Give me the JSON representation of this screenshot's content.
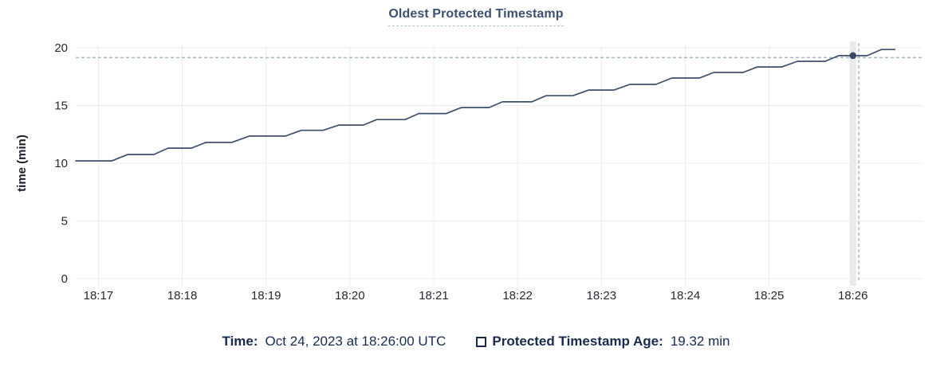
{
  "title": "Oldest Protected Timestamp",
  "legend": {
    "time_label": "Time:",
    "time_value": "Oct 24, 2023 at 18:26:00 UTC",
    "series_label": "Protected Timestamp Age:",
    "series_value": "19.32 min"
  },
  "colors": {
    "title_text": "#3d506e",
    "title_underline": "#b4c1d3",
    "legend_text": "#182a4e",
    "line": "#3e4f6b",
    "dot": "#394a66",
    "crosshair": "#9fb2c2",
    "grid": "#ececec",
    "hover_band": "#e9e9e9",
    "tick_text": "#24292f",
    "axis_title_text": "#1b1f27"
  },
  "chart_data": {
    "type": "line",
    "title": "Oldest Protected Timestamp",
    "xlabel": "",
    "ylabel": "time (min)",
    "ylim": [
      0,
      20
    ],
    "yticks": [
      0,
      5,
      10,
      15,
      20
    ],
    "x_domain": [
      -0.27,
      9.83
    ],
    "xticks": [
      {
        "t": 0,
        "label": "18:17"
      },
      {
        "t": 1,
        "label": "18:18"
      },
      {
        "t": 2,
        "label": "18:19"
      },
      {
        "t": 3,
        "label": "18:20"
      },
      {
        "t": 4,
        "label": "18:21"
      },
      {
        "t": 5,
        "label": "18:22"
      },
      {
        "t": 6,
        "label": "18:23"
      },
      {
        "t": 7,
        "label": "18:24"
      },
      {
        "t": 8,
        "label": "18:25"
      },
      {
        "t": 9,
        "label": "18:26"
      }
    ],
    "grid": true,
    "legend_position": "bottom",
    "series": [
      {
        "name": "Protected Timestamp Age",
        "unit": "min",
        "points": [
          [
            -0.27,
            10.2
          ],
          [
            0.16,
            10.2
          ],
          [
            0.35,
            10.75
          ],
          [
            0.66,
            10.75
          ],
          [
            0.83,
            11.3
          ],
          [
            1.11,
            11.3
          ],
          [
            1.28,
            11.8
          ],
          [
            1.59,
            11.8
          ],
          [
            1.8,
            12.35
          ],
          [
            2.23,
            12.35
          ],
          [
            2.42,
            12.85
          ],
          [
            2.68,
            12.85
          ],
          [
            2.87,
            13.3
          ],
          [
            3.16,
            13.3
          ],
          [
            3.32,
            13.78
          ],
          [
            3.66,
            13.78
          ],
          [
            3.82,
            14.3
          ],
          [
            4.15,
            14.3
          ],
          [
            4.33,
            14.82
          ],
          [
            4.66,
            14.82
          ],
          [
            4.82,
            15.32
          ],
          [
            5.17,
            15.32
          ],
          [
            5.34,
            15.85
          ],
          [
            5.66,
            15.85
          ],
          [
            5.85,
            16.34
          ],
          [
            6.15,
            16.34
          ],
          [
            6.34,
            16.83
          ],
          [
            6.65,
            16.83
          ],
          [
            6.84,
            17.38
          ],
          [
            7.17,
            17.38
          ],
          [
            7.34,
            17.86
          ],
          [
            7.69,
            17.86
          ],
          [
            7.86,
            18.34
          ],
          [
            8.15,
            18.34
          ],
          [
            8.34,
            18.83
          ],
          [
            8.67,
            18.83
          ],
          [
            8.83,
            19.32
          ],
          [
            9.17,
            19.32
          ],
          [
            9.34,
            19.85
          ],
          [
            9.5,
            19.85
          ]
        ]
      }
    ],
    "hover": {
      "t": 9,
      "value": 19.32,
      "crosshair_t": 9.07,
      "crosshair_value": 19.15
    }
  }
}
